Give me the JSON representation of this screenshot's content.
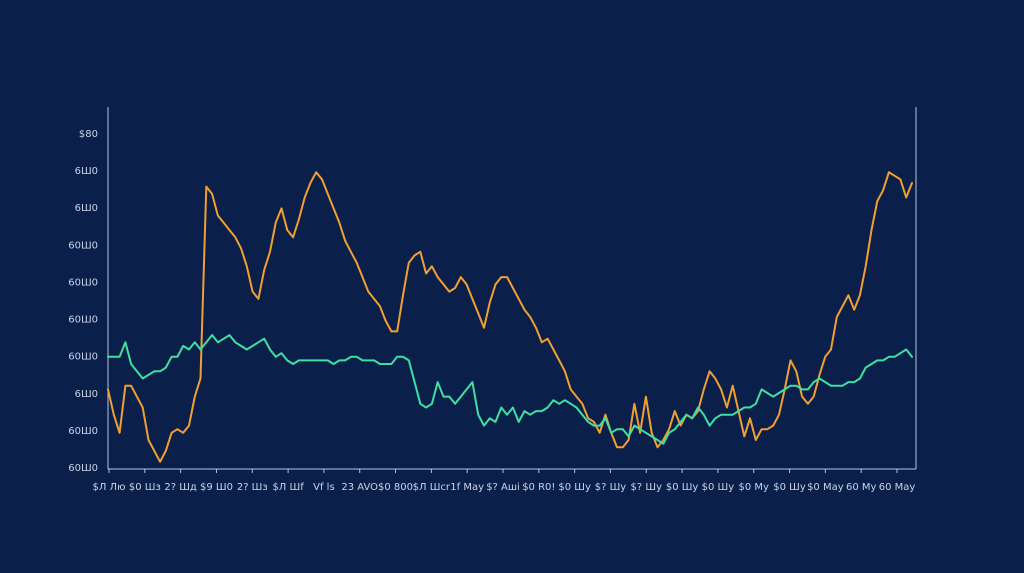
{
  "chart_data": {
    "type": "line",
    "title": "",
    "xlabel": "",
    "ylabel": "",
    "y_tick_labels": [
      "$80",
      "6Ш0",
      "6Ш0",
      "60Ш0",
      "60Ш0",
      "60Ш0",
      "60Ш0",
      "6Ш0",
      "60Ш0",
      "60Ш0"
    ],
    "x_tick_labels": [
      "$Л Лю",
      "$0 Шз",
      "2? Шд",
      "$9 Ш0",
      "2? Шз",
      "$Л Шf",
      "Vf ls",
      "23 AVO",
      "$0 800",
      "$Л Шcr",
      "1f Мау",
      "$? Ашi",
      "$0 R0!",
      "$0 Шу",
      "$? Шу",
      "$? Шу",
      "$0 Шу",
      "$0 Шу",
      "$0 Му",
      "$0 Шу",
      "$0 Мay",
      "60 Мy",
      "60 Мay"
    ],
    "ylim": [
      0,
      100
    ],
    "grid": false,
    "colors": {
      "background": "#0b1f4b",
      "axis": "#b8c4da",
      "tick_text": "#c9d3e6"
    },
    "series": [
      {
        "color": "#f0a030",
        "values": [
          22,
          15,
          10,
          23,
          23,
          20,
          17,
          8,
          5,
          2,
          5,
          10,
          11,
          10,
          12,
          20,
          25,
          78,
          76,
          70,
          68,
          66,
          64,
          61,
          56,
          49,
          47,
          55,
          60,
          68,
          72,
          66,
          64,
          69,
          75,
          79,
          82,
          80,
          76,
          72,
          68,
          63,
          60,
          57,
          53,
          49,
          47,
          45,
          41,
          38,
          38,
          48,
          57,
          59,
          60,
          54,
          56,
          53,
          51,
          49,
          50,
          53,
          51,
          47,
          43,
          39,
          46,
          51,
          53,
          53,
          50,
          47,
          44,
          42,
          39,
          35,
          36,
          33,
          30,
          27,
          22,
          20,
          18,
          14,
          13,
          10,
          15,
          10,
          6,
          6,
          8,
          18,
          10,
          20,
          10,
          6,
          8,
          11,
          16,
          12,
          15,
          14,
          16,
          22,
          27,
          25,
          22,
          17,
          23,
          16,
          9,
          14,
          8,
          11,
          11,
          12,
          15,
          22,
          30,
          27,
          20,
          18,
          20,
          26,
          31,
          33,
          42,
          45,
          48,
          44,
          48,
          56,
          66,
          74,
          77,
          82,
          81,
          80,
          75,
          79
        ]
      },
      {
        "color": "#40e0a0",
        "values": [
          31,
          31,
          31,
          35,
          29,
          27,
          25,
          26,
          27,
          27,
          28,
          31,
          31,
          34,
          33,
          35,
          33,
          35,
          37,
          35,
          36,
          37,
          35,
          34,
          33,
          34,
          35,
          36,
          33,
          31,
          32,
          30,
          29,
          30,
          30,
          30,
          30,
          30,
          30,
          29,
          30,
          30,
          31,
          31,
          30,
          30,
          30,
          29,
          29,
          29,
          31,
          31,
          30,
          24,
          18,
          17,
          18,
          24,
          20,
          20,
          18,
          20,
          22,
          24,
          15,
          12,
          14,
          13,
          17,
          15,
          17,
          13,
          16,
          15,
          16,
          16,
          17,
          19,
          18,
          19,
          18,
          17,
          15,
          13,
          12,
          12,
          14,
          10,
          11,
          11,
          9,
          12,
          11,
          10,
          9,
          8,
          7,
          10,
          11,
          13,
          15,
          14,
          17,
          15,
          12,
          14,
          15,
          15,
          15,
          16,
          17,
          17,
          18,
          22,
          21,
          20,
          21,
          22,
          23,
          23,
          22,
          22,
          24,
          25,
          24,
          23,
          23,
          23,
          24,
          24,
          25,
          28,
          29,
          30,
          30,
          31,
          31,
          32,
          33,
          31
        ]
      }
    ]
  }
}
